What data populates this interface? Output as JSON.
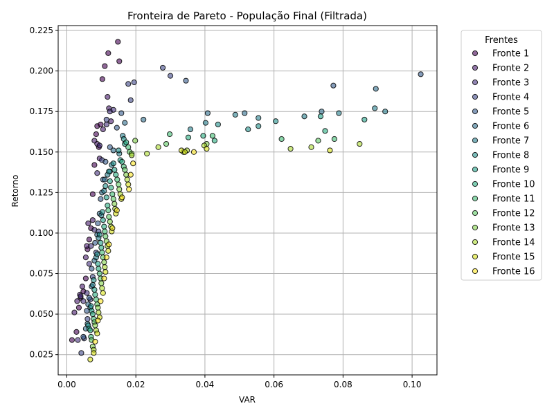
{
  "chart_data": {
    "type": "scatter",
    "title": "Fronteira de Pareto - População Final (Filtrada)",
    "xlabel": "VAR",
    "ylabel": "Retorno",
    "xlim": [
      -0.0025,
      0.1072
    ],
    "ylim": [
      0.0125,
      0.228
    ],
    "xticks": [
      0.0,
      0.02,
      0.04,
      0.06,
      0.08,
      0.1
    ],
    "xtick_labels": [
      "0.00",
      "0.02",
      "0.04",
      "0.06",
      "0.08",
      "0.10"
    ],
    "yticks": [
      0.025,
      0.05,
      0.075,
      0.1,
      0.125,
      0.15,
      0.175,
      0.2,
      0.225
    ],
    "ytick_labels": [
      "0.025",
      "0.050",
      "0.075",
      "0.100",
      "0.125",
      "0.150",
      "0.175",
      "0.200",
      "0.225"
    ],
    "grid": true,
    "legend": {
      "title": "Frentes",
      "placement": "outside-right"
    },
    "series": [
      {
        "name": "Fronte 1",
        "color": "#440154",
        "points": [
          [
            0.0015,
            0.034
          ],
          [
            0.0028,
            0.039
          ],
          [
            0.0035,
            0.054
          ],
          [
            0.004,
            0.06
          ],
          [
            0.0048,
            0.064
          ],
          [
            0.0055,
            0.072
          ],
          [
            0.006,
            0.09
          ],
          [
            0.0065,
            0.096
          ],
          [
            0.007,
            0.103
          ],
          [
            0.0075,
            0.124
          ],
          [
            0.008,
            0.142
          ],
          [
            0.0085,
            0.161
          ],
          [
            0.0088,
            0.166
          ],
          [
            0.0093,
            0.153
          ],
          [
            0.0098,
            0.167
          ],
          [
            0.0103,
            0.195
          ],
          [
            0.011,
            0.203
          ],
          [
            0.012,
            0.211
          ],
          [
            0.0148,
            0.218
          ],
          [
            0.0152,
            0.206
          ]
        ]
      },
      {
        "name": "Fronte 2",
        "color": "#481b6d",
        "points": [
          [
            0.0022,
            0.051
          ],
          [
            0.003,
            0.058
          ],
          [
            0.0038,
            0.062
          ],
          [
            0.0045,
            0.067
          ],
          [
            0.0055,
            0.085
          ],
          [
            0.0058,
            0.092
          ],
          [
            0.0062,
            0.106
          ],
          [
            0.0075,
            0.108
          ],
          [
            0.008,
            0.157
          ],
          [
            0.0088,
            0.155
          ],
          [
            0.0095,
            0.146
          ],
          [
            0.0105,
            0.164
          ],
          [
            0.0118,
            0.184
          ],
          [
            0.0122,
            0.177
          ],
          [
            0.0128,
            0.169
          ]
        ]
      },
      {
        "name": "Fronte 3",
        "color": "#46327e",
        "points": [
          [
            0.0032,
            0.034
          ],
          [
            0.004,
            0.061
          ],
          [
            0.0048,
            0.058
          ],
          [
            0.0058,
            0.063
          ],
          [
            0.0065,
            0.081
          ],
          [
            0.007,
            0.092
          ],
          [
            0.008,
            0.102
          ],
          [
            0.0088,
            0.137
          ],
          [
            0.0095,
            0.154
          ],
          [
            0.0115,
            0.167
          ],
          [
            0.0125,
            0.175
          ],
          [
            0.0135,
            0.176
          ]
        ]
      },
      {
        "name": "Fronte 4",
        "color": "#3f4788",
        "points": [
          [
            0.0042,
            0.026
          ],
          [
            0.005,
            0.035
          ],
          [
            0.006,
            0.047
          ],
          [
            0.0068,
            0.059
          ],
          [
            0.0075,
            0.073
          ],
          [
            0.0085,
            0.088
          ],
          [
            0.0092,
            0.101
          ],
          [
            0.0102,
            0.145
          ],
          [
            0.0115,
            0.17
          ],
          [
            0.0178,
            0.192
          ],
          [
            0.0185,
            0.182
          ],
          [
            0.0195,
            0.193
          ],
          [
            0.0278,
            0.202
          ],
          [
            0.03,
            0.197
          ]
        ]
      },
      {
        "name": "Fronte 5",
        "color": "#365c8d",
        "points": [
          [
            0.0048,
            0.036
          ],
          [
            0.0058,
            0.052
          ],
          [
            0.0065,
            0.06
          ],
          [
            0.0072,
            0.078
          ],
          [
            0.0082,
            0.094
          ],
          [
            0.009,
            0.106
          ],
          [
            0.0098,
            0.121
          ],
          [
            0.0105,
            0.133
          ],
          [
            0.0112,
            0.144
          ],
          [
            0.0125,
            0.153
          ],
          [
            0.0145,
            0.165
          ],
          [
            0.0158,
            0.174
          ],
          [
            0.0345,
            0.194
          ],
          [
            0.0772,
            0.191
          ],
          [
            0.1025,
            0.198
          ]
        ]
      },
      {
        "name": "Fronte 6",
        "color": "#2e6e8e",
        "points": [
          [
            0.0055,
            0.041
          ],
          [
            0.0062,
            0.056
          ],
          [
            0.0072,
            0.067
          ],
          [
            0.008,
            0.083
          ],
          [
            0.0088,
            0.099
          ],
          [
            0.0095,
            0.112
          ],
          [
            0.0102,
            0.125
          ],
          [
            0.011,
            0.133
          ],
          [
            0.0125,
            0.138
          ],
          [
            0.0135,
            0.151
          ],
          [
            0.0168,
            0.168
          ],
          [
            0.0222,
            0.17
          ],
          [
            0.0408,
            0.174
          ],
          [
            0.0515,
            0.174
          ],
          [
            0.0738,
            0.175
          ],
          [
            0.0895,
            0.189
          ]
        ]
      },
      {
        "name": "Fronte 7",
        "color": "#277f8e",
        "points": [
          [
            0.006,
            0.044
          ],
          [
            0.0068,
            0.054
          ],
          [
            0.0075,
            0.068
          ],
          [
            0.0085,
            0.085
          ],
          [
            0.0092,
            0.097
          ],
          [
            0.01,
            0.111
          ],
          [
            0.0108,
            0.126
          ],
          [
            0.0118,
            0.136
          ],
          [
            0.013,
            0.142
          ],
          [
            0.0152,
            0.149
          ],
          [
            0.0162,
            0.16
          ],
          [
            0.0358,
            0.164
          ],
          [
            0.0402,
            0.168
          ],
          [
            0.0488,
            0.173
          ],
          [
            0.0555,
            0.171
          ],
          [
            0.0688,
            0.172
          ],
          [
            0.0788,
            0.174
          ],
          [
            0.0892,
            0.177
          ],
          [
            0.0922,
            0.175
          ]
        ]
      },
      {
        "name": "Fronte 8",
        "color": "#21918c",
        "points": [
          [
            0.0062,
            0.043
          ],
          [
            0.007,
            0.055
          ],
          [
            0.0078,
            0.071
          ],
          [
            0.0088,
            0.087
          ],
          [
            0.0095,
            0.099
          ],
          [
            0.0103,
            0.113
          ],
          [
            0.0112,
            0.129
          ],
          [
            0.0122,
            0.138
          ],
          [
            0.0135,
            0.143
          ],
          [
            0.015,
            0.151
          ],
          [
            0.0165,
            0.158
          ],
          [
            0.0438,
            0.167
          ],
          [
            0.0525,
            0.164
          ],
          [
            0.0555,
            0.166
          ],
          [
            0.0605,
            0.169
          ]
        ]
      },
      {
        "name": "Fronte 9",
        "color": "#1fa188",
        "points": [
          [
            0.0065,
            0.041
          ],
          [
            0.0072,
            0.052
          ],
          [
            0.008,
            0.065
          ],
          [
            0.009,
            0.081
          ],
          [
            0.0098,
            0.094
          ],
          [
            0.0105,
            0.108
          ],
          [
            0.0115,
            0.122
          ],
          [
            0.0125,
            0.132
          ],
          [
            0.0138,
            0.139
          ],
          [
            0.0155,
            0.145
          ],
          [
            0.0168,
            0.155
          ],
          [
            0.0735,
            0.172
          ],
          [
            0.0862,
            0.17
          ]
        ]
      },
      {
        "name": "Fronte 10",
        "color": "#28ae80",
        "points": [
          [
            0.0068,
            0.04
          ],
          [
            0.0075,
            0.05
          ],
          [
            0.0082,
            0.062
          ],
          [
            0.0092,
            0.078
          ],
          [
            0.01,
            0.091
          ],
          [
            0.0108,
            0.104
          ],
          [
            0.0118,
            0.117
          ],
          [
            0.0128,
            0.128
          ],
          [
            0.0142,
            0.136
          ],
          [
            0.016,
            0.144
          ],
          [
            0.0172,
            0.156
          ],
          [
            0.0352,
            0.159
          ],
          [
            0.0395,
            0.16
          ],
          [
            0.0428,
            0.157
          ],
          [
            0.0748,
            0.163
          ]
        ]
      },
      {
        "name": "Fronte 11",
        "color": "#3fbc73",
        "points": [
          [
            0.007,
            0.036
          ],
          [
            0.0078,
            0.047
          ],
          [
            0.0085,
            0.059
          ],
          [
            0.0095,
            0.075
          ],
          [
            0.0102,
            0.088
          ],
          [
            0.011,
            0.101
          ],
          [
            0.012,
            0.114
          ],
          [
            0.0132,
            0.124
          ],
          [
            0.0146,
            0.133
          ],
          [
            0.0165,
            0.141
          ],
          [
            0.0178,
            0.153
          ],
          [
            0.0298,
            0.161
          ],
          [
            0.0422,
            0.16
          ],
          [
            0.0622,
            0.158
          ],
          [
            0.0775,
            0.158
          ]
        ]
      },
      {
        "name": "Fronte 12",
        "color": "#5ec962",
        "points": [
          [
            0.0072,
            0.034
          ],
          [
            0.008,
            0.045
          ],
          [
            0.0088,
            0.056
          ],
          [
            0.0098,
            0.072
          ],
          [
            0.0105,
            0.085
          ],
          [
            0.0112,
            0.098
          ],
          [
            0.0122,
            0.11
          ],
          [
            0.0135,
            0.121
          ],
          [
            0.015,
            0.13
          ],
          [
            0.0168,
            0.139
          ],
          [
            0.0182,
            0.15
          ],
          [
            0.0288,
            0.155
          ],
          [
            0.0728,
            0.157
          ]
        ]
      },
      {
        "name": "Fronte 13",
        "color": "#84d44b",
        "points": [
          [
            0.0075,
            0.03
          ],
          [
            0.0082,
            0.043
          ],
          [
            0.009,
            0.054
          ],
          [
            0.01,
            0.069
          ],
          [
            0.0108,
            0.082
          ],
          [
            0.0115,
            0.095
          ],
          [
            0.0125,
            0.107
          ],
          [
            0.0138,
            0.118
          ],
          [
            0.0152,
            0.127
          ],
          [
            0.0172,
            0.136
          ],
          [
            0.0188,
            0.149
          ],
          [
            0.0198,
            0.157
          ],
          [
            0.0405,
            0.155
          ]
        ]
      },
      {
        "name": "Fronte 14",
        "color": "#addc30",
        "points": [
          [
            0.0078,
            0.028
          ],
          [
            0.0085,
            0.04
          ],
          [
            0.0092,
            0.051
          ],
          [
            0.0102,
            0.066
          ],
          [
            0.011,
            0.079
          ],
          [
            0.0118,
            0.092
          ],
          [
            0.0128,
            0.104
          ],
          [
            0.014,
            0.115
          ],
          [
            0.0155,
            0.124
          ],
          [
            0.0175,
            0.133
          ],
          [
            0.0188,
            0.148
          ],
          [
            0.0232,
            0.149
          ],
          [
            0.0265,
            0.153
          ],
          [
            0.0338,
            0.15
          ],
          [
            0.0348,
            0.151
          ],
          [
            0.0398,
            0.154
          ],
          [
            0.0648,
            0.152
          ],
          [
            0.0708,
            0.153
          ],
          [
            0.0848,
            0.155
          ]
        ]
      },
      {
        "name": "Fronte 15",
        "color": "#d8e219",
        "points": [
          [
            0.0068,
            0.022
          ],
          [
            0.0078,
            0.026
          ],
          [
            0.0088,
            0.038
          ],
          [
            0.0095,
            0.048
          ],
          [
            0.0105,
            0.063
          ],
          [
            0.0112,
            0.076
          ],
          [
            0.012,
            0.089
          ],
          [
            0.013,
            0.101
          ],
          [
            0.0142,
            0.112
          ],
          [
            0.0158,
            0.121
          ],
          [
            0.0178,
            0.13
          ],
          [
            0.0332,
            0.151
          ],
          [
            0.0342,
            0.15
          ],
          [
            0.0405,
            0.152
          ],
          [
            0.0762,
            0.151
          ]
        ]
      },
      {
        "name": "Fronte 16",
        "color": "#fde725",
        "points": [
          [
            0.0082,
            0.033
          ],
          [
            0.009,
            0.046
          ],
          [
            0.0098,
            0.058
          ],
          [
            0.0108,
            0.072
          ],
          [
            0.0115,
            0.085
          ],
          [
            0.0122,
            0.093
          ],
          [
            0.0132,
            0.103
          ],
          [
            0.0145,
            0.114
          ],
          [
            0.016,
            0.122
          ],
          [
            0.018,
            0.127
          ],
          [
            0.0185,
            0.136
          ],
          [
            0.0192,
            0.143
          ],
          [
            0.0368,
            0.15
          ]
        ]
      }
    ]
  }
}
